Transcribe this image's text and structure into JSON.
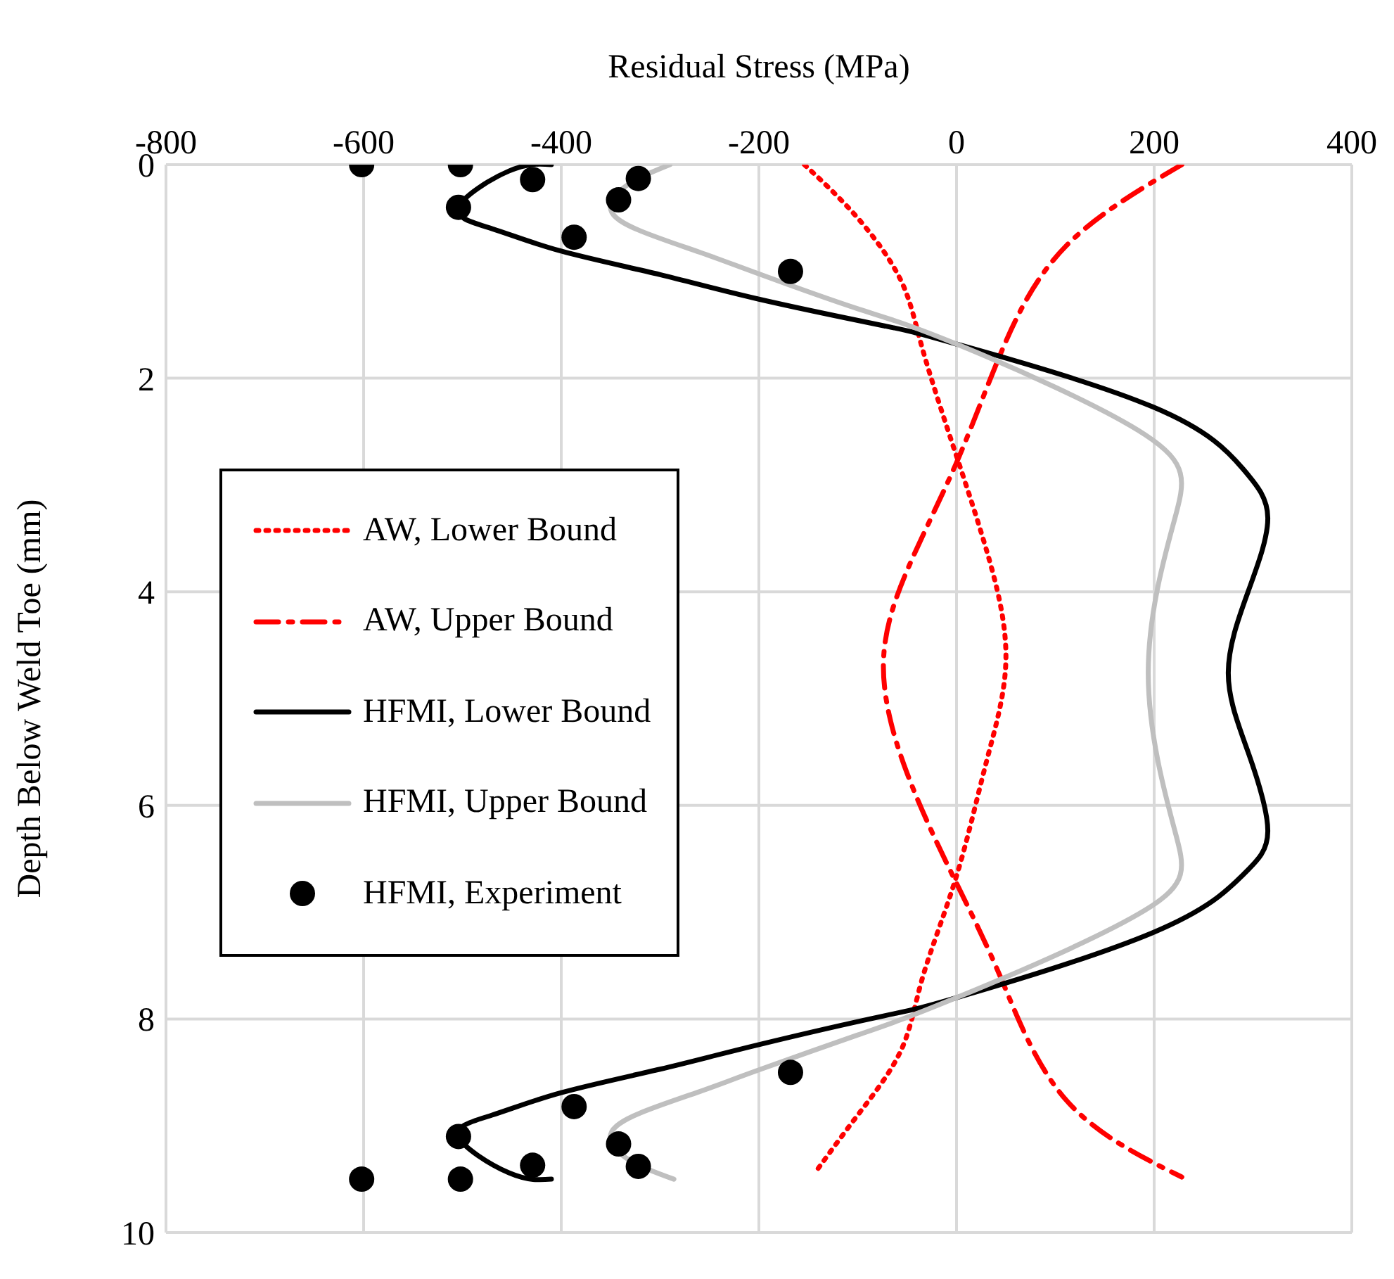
{
  "chart_data": {
    "type": "line",
    "xlabel": "Residual Stress (MPa)",
    "ylabel": "Depth Below Weld Toe (mm)",
    "xlim": [
      -800,
      400
    ],
    "xticks": [
      -800,
      -600,
      -400,
      -200,
      0,
      200,
      400
    ],
    "ylim": [
      10,
      0
    ],
    "yticks": [
      0,
      2,
      4,
      6,
      8,
      10
    ],
    "grid": true,
    "legend": "left",
    "series": [
      {
        "name": "AW, Lower Bound",
        "color": "#ff0000",
        "line_style": "dotted",
        "marker": "none",
        "x": [
          -154,
          -100,
          -56,
          -34,
          0,
          30,
          50,
          30,
          0,
          -34,
          -56,
          -100,
          -144
        ],
        "values": [
          0,
          0.5,
          1.09,
          1.74,
          2.73,
          3.6,
          4.6,
          5.6,
          6.66,
          7.6,
          8.29,
          8.9,
          9.45
        ]
      },
      {
        "name": "AW, Upper Bound",
        "color": "#ff0000",
        "line_style": "dashed",
        "marker": "none",
        "x": [
          228,
          111,
          46,
          0,
          -50,
          -74,
          -50,
          0,
          46,
          111,
          228
        ],
        "values": [
          0,
          0.76,
          1.74,
          2.79,
          3.8,
          4.7,
          5.7,
          6.73,
          7.64,
          8.76,
          9.48
        ]
      },
      {
        "name": "HFMI, Lower Bound",
        "color": "#000000",
        "line_style": "solid",
        "marker": "none",
        "x": [
          -410,
          -453,
          -504,
          -470,
          -400,
          -300,
          -200,
          -73,
          0,
          199,
          290,
          315,
          295,
          275,
          295,
          315,
          290,
          199,
          0,
          -73,
          -200,
          -300,
          -400,
          -470,
          -504,
          -453,
          -410
        ],
        "values": [
          0,
          0.06,
          0.4,
          0.6,
          0.81,
          1.03,
          1.26,
          1.51,
          1.68,
          2.27,
          2.85,
          3.31,
          4.0,
          4.76,
          5.5,
          6.24,
          6.65,
          7.19,
          7.8,
          7.97,
          8.24,
          8.47,
          8.69,
          8.9,
          9.1,
          9.44,
          9.5
        ]
      },
      {
        "name": "HFMI, Upper Bound",
        "color": "#bfbfbf",
        "line_style": "solid",
        "marker": "none",
        "x": [
          -290,
          -333,
          -350,
          -320,
          -260,
          -201,
          -100,
          0,
          191,
          221,
          194,
          221,
          191,
          0,
          -100,
          -201,
          -260,
          -320,
          -350,
          -333,
          -286
        ],
        "values": [
          0,
          0.19,
          0.42,
          0.62,
          0.82,
          1.02,
          1.35,
          1.68,
          2.53,
          3.31,
          4.76,
          6.24,
          6.98,
          7.8,
          8.15,
          8.48,
          8.68,
          8.88,
          9.08,
          9.31,
          9.5
        ]
      },
      {
        "name": "HFMI, Experiment",
        "type": "scatter",
        "color": "#000000",
        "marker": "circle",
        "x": [
          -602,
          -502,
          -429,
          -504,
          -387,
          -342,
          -322,
          -168,
          -602,
          -502,
          -429,
          -504,
          -387,
          -342,
          -322,
          -168
        ],
        "values": [
          0,
          0,
          0.14,
          0.4,
          0.68,
          0.33,
          0.13,
          1.0,
          9.5,
          9.5,
          9.37,
          9.1,
          8.82,
          9.17,
          9.38,
          8.5
        ]
      }
    ]
  }
}
